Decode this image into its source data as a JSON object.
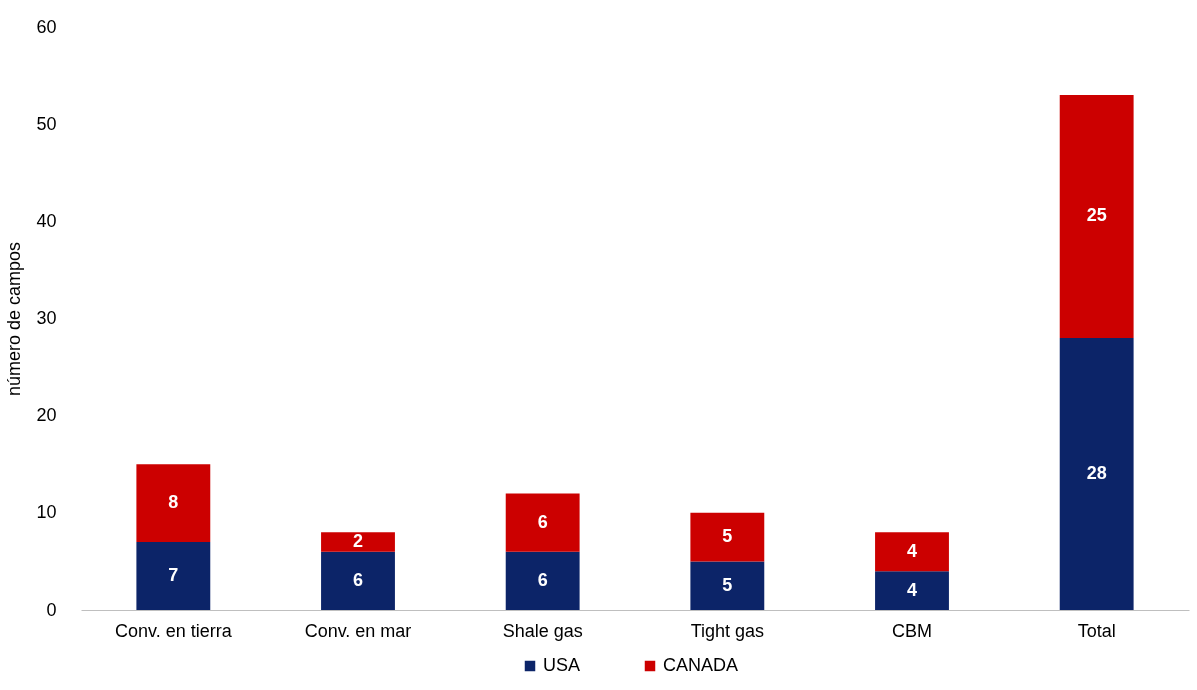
{
  "chart_data": {
    "type": "bar",
    "stacked": true,
    "ylabel": "número de campos",
    "categories": [
      "Conv. en tierra",
      "Conv. en mar",
      "Shale gas",
      "Tight gas",
      "CBM",
      "Total"
    ],
    "series": [
      {
        "name": "USA",
        "color": "#0c2468",
        "values": [
          7,
          6,
          6,
          5,
          4,
          28
        ]
      },
      {
        "name": "CANADA",
        "color": "#cc0000",
        "values": [
          8,
          2,
          6,
          5,
          4,
          25
        ]
      }
    ],
    "ylim": [
      0,
      60
    ],
    "yticks": [
      0,
      10,
      20,
      30,
      40,
      50,
      60
    ],
    "grid": false,
    "legend": "bottom",
    "data_labels": true
  }
}
